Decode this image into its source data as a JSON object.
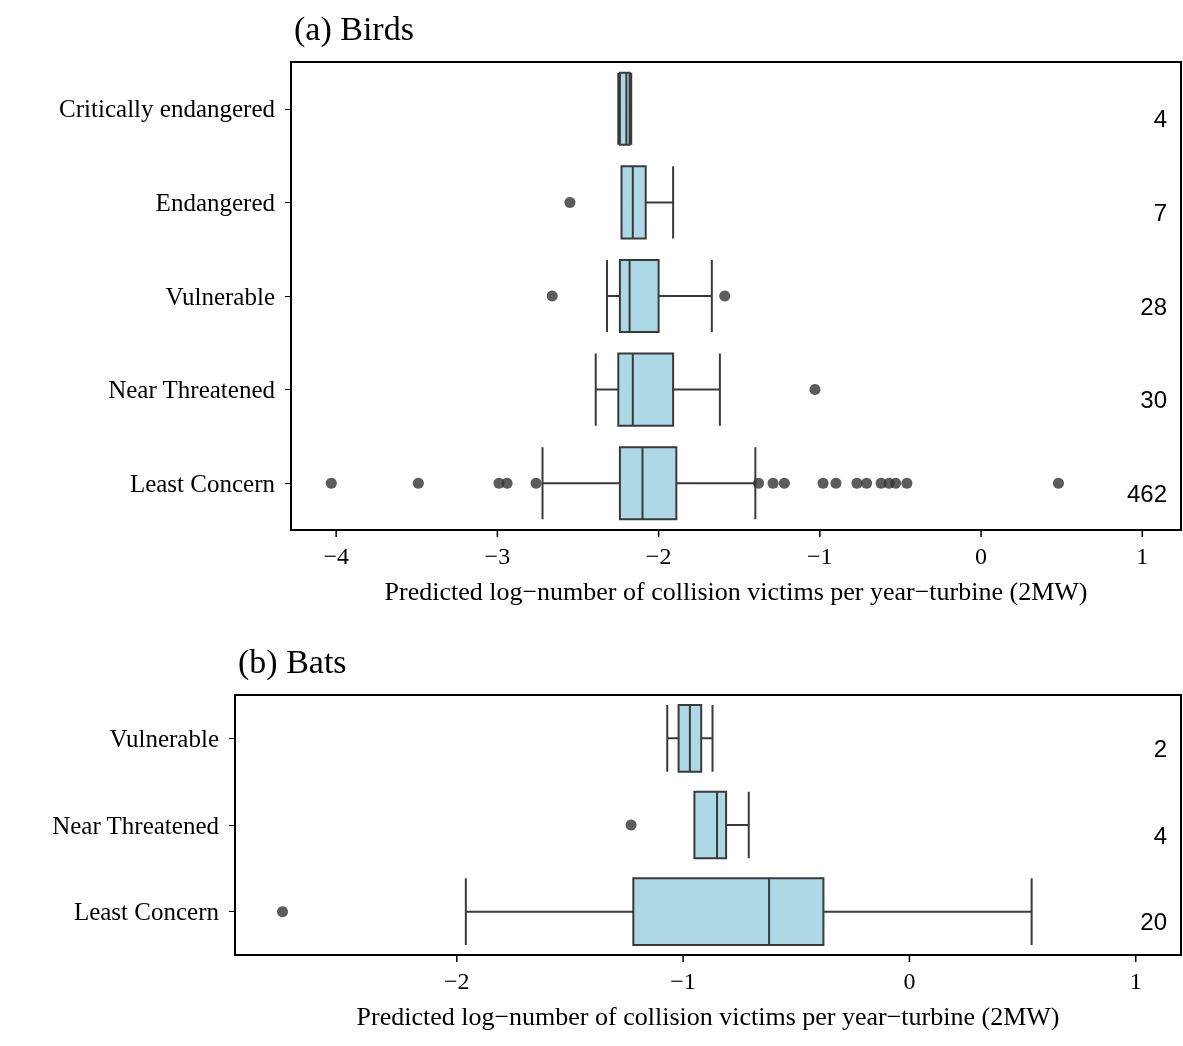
{
  "chart_data": [
    {
      "type": "box",
      "orientation": "horizontal",
      "title": "(a) Birds",
      "xlabel": "Predicted log−number of collision victims per year−turbine (2MW)",
      "color": "#add8e6",
      "grid": false,
      "categories": [
        "Critically endangered",
        "Endangered",
        "Vulnerable",
        "Near Threatened",
        "Least Concern"
      ],
      "boxes": [
        {
          "low": -2.25,
          "q1": -2.24,
          "median": -2.2,
          "q3": -2.18,
          "high": -2.17
        },
        {
          "low": -2.23,
          "q1": -2.23,
          "median": -2.16,
          "q3": -2.08,
          "high": -1.91,
          "outliers": [
            -2.55
          ]
        },
        {
          "low": -2.32,
          "q1": -2.24,
          "median": -2.18,
          "q3": -2.0,
          "high": -1.67,
          "outliers": [
            -2.66,
            -1.59
          ]
        },
        {
          "low": -2.39,
          "q1": -2.25,
          "median": -2.16,
          "q3": -1.91,
          "high": -1.62,
          "outliers": [
            -1.03
          ]
        },
        {
          "low": -2.72,
          "q1": -2.24,
          "median": -2.1,
          "q3": -1.89,
          "high": -1.4,
          "outliers": [
            -4.03,
            -3.49,
            -2.99,
            -2.94,
            -2.76,
            -1.38,
            -1.29,
            -1.22,
            -0.98,
            -0.9,
            -0.77,
            -0.71,
            -0.62,
            -0.57,
            -0.53,
            -0.46,
            0.48
          ]
        }
      ],
      "annotations": [
        "4",
        "7",
        "28",
        "30",
        "462"
      ],
      "xlim": [
        -4.28,
        1.24
      ],
      "xticks": [
        {
          "value": -4,
          "label": "−4"
        },
        {
          "value": -3,
          "label": "−3"
        },
        {
          "value": -2,
          "label": "−2"
        },
        {
          "value": -1,
          "label": "−1"
        },
        {
          "value": 0,
          "label": "0"
        },
        {
          "value": 1,
          "label": "1"
        }
      ]
    },
    {
      "type": "box",
      "orientation": "horizontal",
      "title": "(b) Bats",
      "xlabel": "Predicted log−number of collision victims per year−turbine (2MW)",
      "color": "#add8e6",
      "grid": false,
      "categories": [
        "Vulnerable",
        "Near Threatened",
        "Least Concern"
      ],
      "boxes": [
        {
          "low": -1.07,
          "q1": -1.02,
          "median": -0.97,
          "q3": -0.92,
          "high": -0.87
        },
        {
          "low": -0.95,
          "q1": -0.95,
          "median": -0.85,
          "q3": -0.81,
          "high": -0.71,
          "outliers": [
            -1.23
          ]
        },
        {
          "low": -1.96,
          "q1": -1.22,
          "median": -0.62,
          "q3": -0.38,
          "high": 0.54,
          "outliers": [
            -2.77
          ]
        }
      ],
      "annotations": [
        "2",
        "4",
        "20"
      ],
      "xlim": [
        -2.98,
        1.2
      ],
      "xticks": [
        {
          "value": -2,
          "label": "−2"
        },
        {
          "value": -1,
          "label": "−1"
        },
        {
          "value": 0,
          "label": "0"
        },
        {
          "value": 1,
          "label": "1"
        }
      ]
    }
  ]
}
